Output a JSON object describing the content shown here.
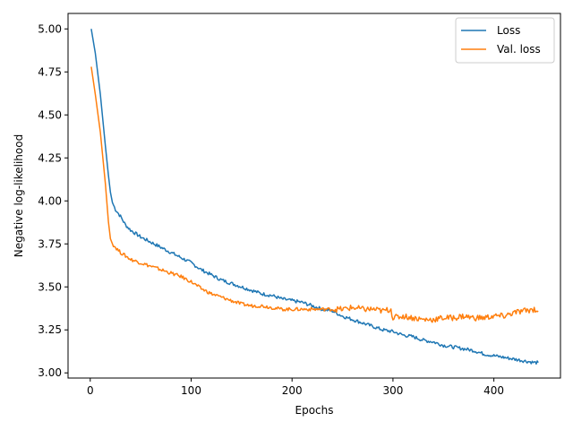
{
  "chart_data": {
    "type": "line",
    "title": "",
    "xlabel": "Epochs",
    "ylabel": "Negative log-likelihood",
    "xlim": [
      -22,
      466
    ],
    "ylim": [
      2.97,
      5.09
    ],
    "xticks": [
      0,
      100,
      200,
      300,
      400
    ],
    "xtick_labels": [
      "0",
      "100",
      "200",
      "300",
      "400"
    ],
    "yticks": [
      3.0,
      3.25,
      3.5,
      3.75,
      4.0,
      4.25,
      4.5,
      4.75,
      5.0
    ],
    "ytick_labels": [
      "3.00",
      "3.25",
      "3.50",
      "3.75",
      "4.00",
      "4.25",
      "4.50",
      "4.75",
      "5.00"
    ],
    "grid": false,
    "legend_position": "top-right",
    "series": [
      {
        "name": "Loss",
        "color": "#1f77b4",
        "x": [
          1,
          5,
          10,
          15,
          18,
          20,
          22,
          25,
          30,
          35,
          40,
          50,
          60,
          70,
          80,
          90,
          100,
          110,
          120,
          130,
          140,
          150,
          160,
          170,
          180,
          190,
          200,
          210,
          220,
          230,
          240,
          250,
          260,
          270,
          280,
          290,
          300,
          310,
          320,
          330,
          340,
          350,
          360,
          370,
          380,
          390,
          400,
          410,
          420,
          430,
          440,
          444
        ],
        "y": [
          5.0,
          4.86,
          4.62,
          4.32,
          4.15,
          4.05,
          3.99,
          3.95,
          3.91,
          3.86,
          3.83,
          3.79,
          3.76,
          3.73,
          3.7,
          3.67,
          3.64,
          3.6,
          3.57,
          3.54,
          3.52,
          3.5,
          3.48,
          3.46,
          3.45,
          3.43,
          3.42,
          3.41,
          3.39,
          3.37,
          3.36,
          3.33,
          3.31,
          3.29,
          3.27,
          3.25,
          3.24,
          3.22,
          3.21,
          3.19,
          3.18,
          3.16,
          3.15,
          3.14,
          3.13,
          3.11,
          3.1,
          3.09,
          3.08,
          3.07,
          3.06,
          3.06
        ]
      },
      {
        "name": "Val. loss",
        "color": "#ff7f0e",
        "x": [
          1,
          5,
          10,
          15,
          18,
          20,
          22,
          25,
          30,
          35,
          40,
          50,
          60,
          70,
          80,
          90,
          100,
          110,
          120,
          130,
          140,
          150,
          160,
          170,
          180,
          190,
          200,
          210,
          220,
          230,
          240,
          250,
          260,
          270,
          280,
          290,
          298,
          300,
          310,
          320,
          330,
          340,
          350,
          360,
          370,
          380,
          390,
          400,
          410,
          420,
          430,
          440,
          444
        ],
        "y": [
          4.78,
          4.62,
          4.4,
          4.1,
          3.88,
          3.78,
          3.75,
          3.73,
          3.7,
          3.68,
          3.66,
          3.64,
          3.62,
          3.6,
          3.58,
          3.56,
          3.53,
          3.49,
          3.46,
          3.44,
          3.42,
          3.4,
          3.39,
          3.39,
          3.38,
          3.37,
          3.37,
          3.37,
          3.37,
          3.37,
          3.37,
          3.37,
          3.38,
          3.37,
          3.37,
          3.36,
          3.37,
          3.32,
          3.33,
          3.32,
          3.31,
          3.31,
          3.32,
          3.32,
          3.33,
          3.32,
          3.32,
          3.33,
          3.33,
          3.35,
          3.36,
          3.37,
          3.36
        ]
      }
    ]
  }
}
